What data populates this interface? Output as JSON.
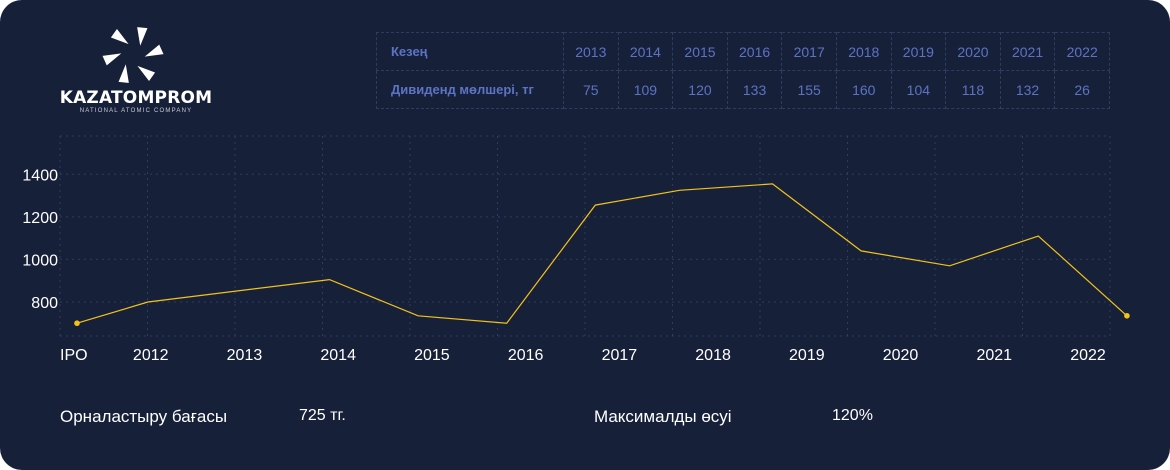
{
  "brand": {
    "name": "KAZATOMPROM",
    "tagline": "NATIONAL ATOMIC COMPANY"
  },
  "dividends": {
    "period_label": "Кезең",
    "amount_label": "Дивиденд мөлшері, тг",
    "years": [
      "2013",
      "2014",
      "2015",
      "2016",
      "2017",
      "2018",
      "2019",
      "2020",
      "2021",
      "2022"
    ],
    "amounts": [
      "75",
      "109",
      "120",
      "133",
      "155",
      "160",
      "104",
      "118",
      "132",
      "26"
    ]
  },
  "chart_data": {
    "type": "line",
    "x_tick_labels": [
      "IPO",
      "2012",
      "2013",
      "2014",
      "2015",
      "2016",
      "2017",
      "2018",
      "2019",
      "2020",
      "2021",
      "2022"
    ],
    "y_tick_labels": [
      "800",
      "1000",
      "1200",
      "1400"
    ],
    "ylim": [
      640,
      1580
    ],
    "grid": true,
    "series": [
      {
        "color": "#f2c21b",
        "points": [
          {
            "x": 0.0,
            "y": 700
          },
          {
            "x": 0.8,
            "y": 800
          },
          {
            "x": 2.85,
            "y": 905
          },
          {
            "x": 3.85,
            "y": 735
          },
          {
            "x": 4.85,
            "y": 700
          },
          {
            "x": 5.85,
            "y": 1255
          },
          {
            "x": 6.8,
            "y": 1325
          },
          {
            "x": 7.85,
            "y": 1355
          },
          {
            "x": 8.85,
            "y": 1040
          },
          {
            "x": 9.85,
            "y": 970
          },
          {
            "x": 10.85,
            "y": 1110
          },
          {
            "x": 11.85,
            "y": 735
          }
        ]
      }
    ]
  },
  "stats": {
    "placement_label": "Орналастыру бағасы",
    "placement_value": "725 тг.",
    "max_growth_label": "Максималды өсуі",
    "max_growth_value": "120%"
  },
  "colors": {
    "background": "#172039",
    "line": "#f2c21b",
    "table_text": "#5c73c4",
    "grid": "#2f3c5f"
  }
}
